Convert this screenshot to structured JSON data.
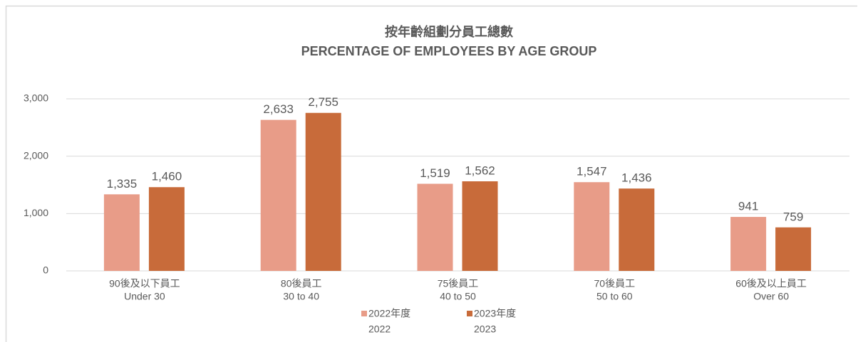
{
  "chart_data": {
    "type": "bar",
    "title": "按年齡組劃分員工總數",
    "subtitle": "PERCENTAGE OF EMPLOYEES BY AGE GROUP",
    "categories": [
      [
        "90後及以下員工",
        "Under 30"
      ],
      [
        "80後員工",
        "30 to 40"
      ],
      [
        "75後員工",
        "40 to 50"
      ],
      [
        "70後員工",
        "50 to 60"
      ],
      [
        "60後及以上員工",
        "Over 60"
      ]
    ],
    "series": [
      {
        "name": [
          "2022年度",
          "2022"
        ],
        "color": "#e89c88",
        "values": [
          1335,
          2633,
          1519,
          1547,
          941
        ],
        "value_labels": [
          "1,335",
          "2,633",
          "1,519",
          "1,547",
          "941"
        ]
      },
      {
        "name": [
          "2023年度",
          "2023"
        ],
        "color": "#c86b3a",
        "values": [
          1460,
          2755,
          1562,
          1436,
          759
        ],
        "value_labels": [
          "1,460",
          "2,755",
          "1,562",
          "1,436",
          "759"
        ]
      }
    ],
    "ylim": [
      0,
      3000
    ],
    "yticks": [
      0,
      {
        "value": 1000,
        "label": "1,000"
      },
      {
        "value": 2000,
        "label": "2,000"
      },
      {
        "value": 3000,
        "label": "3,000"
      }
    ],
    "grid": true,
    "legend": "bottom"
  }
}
